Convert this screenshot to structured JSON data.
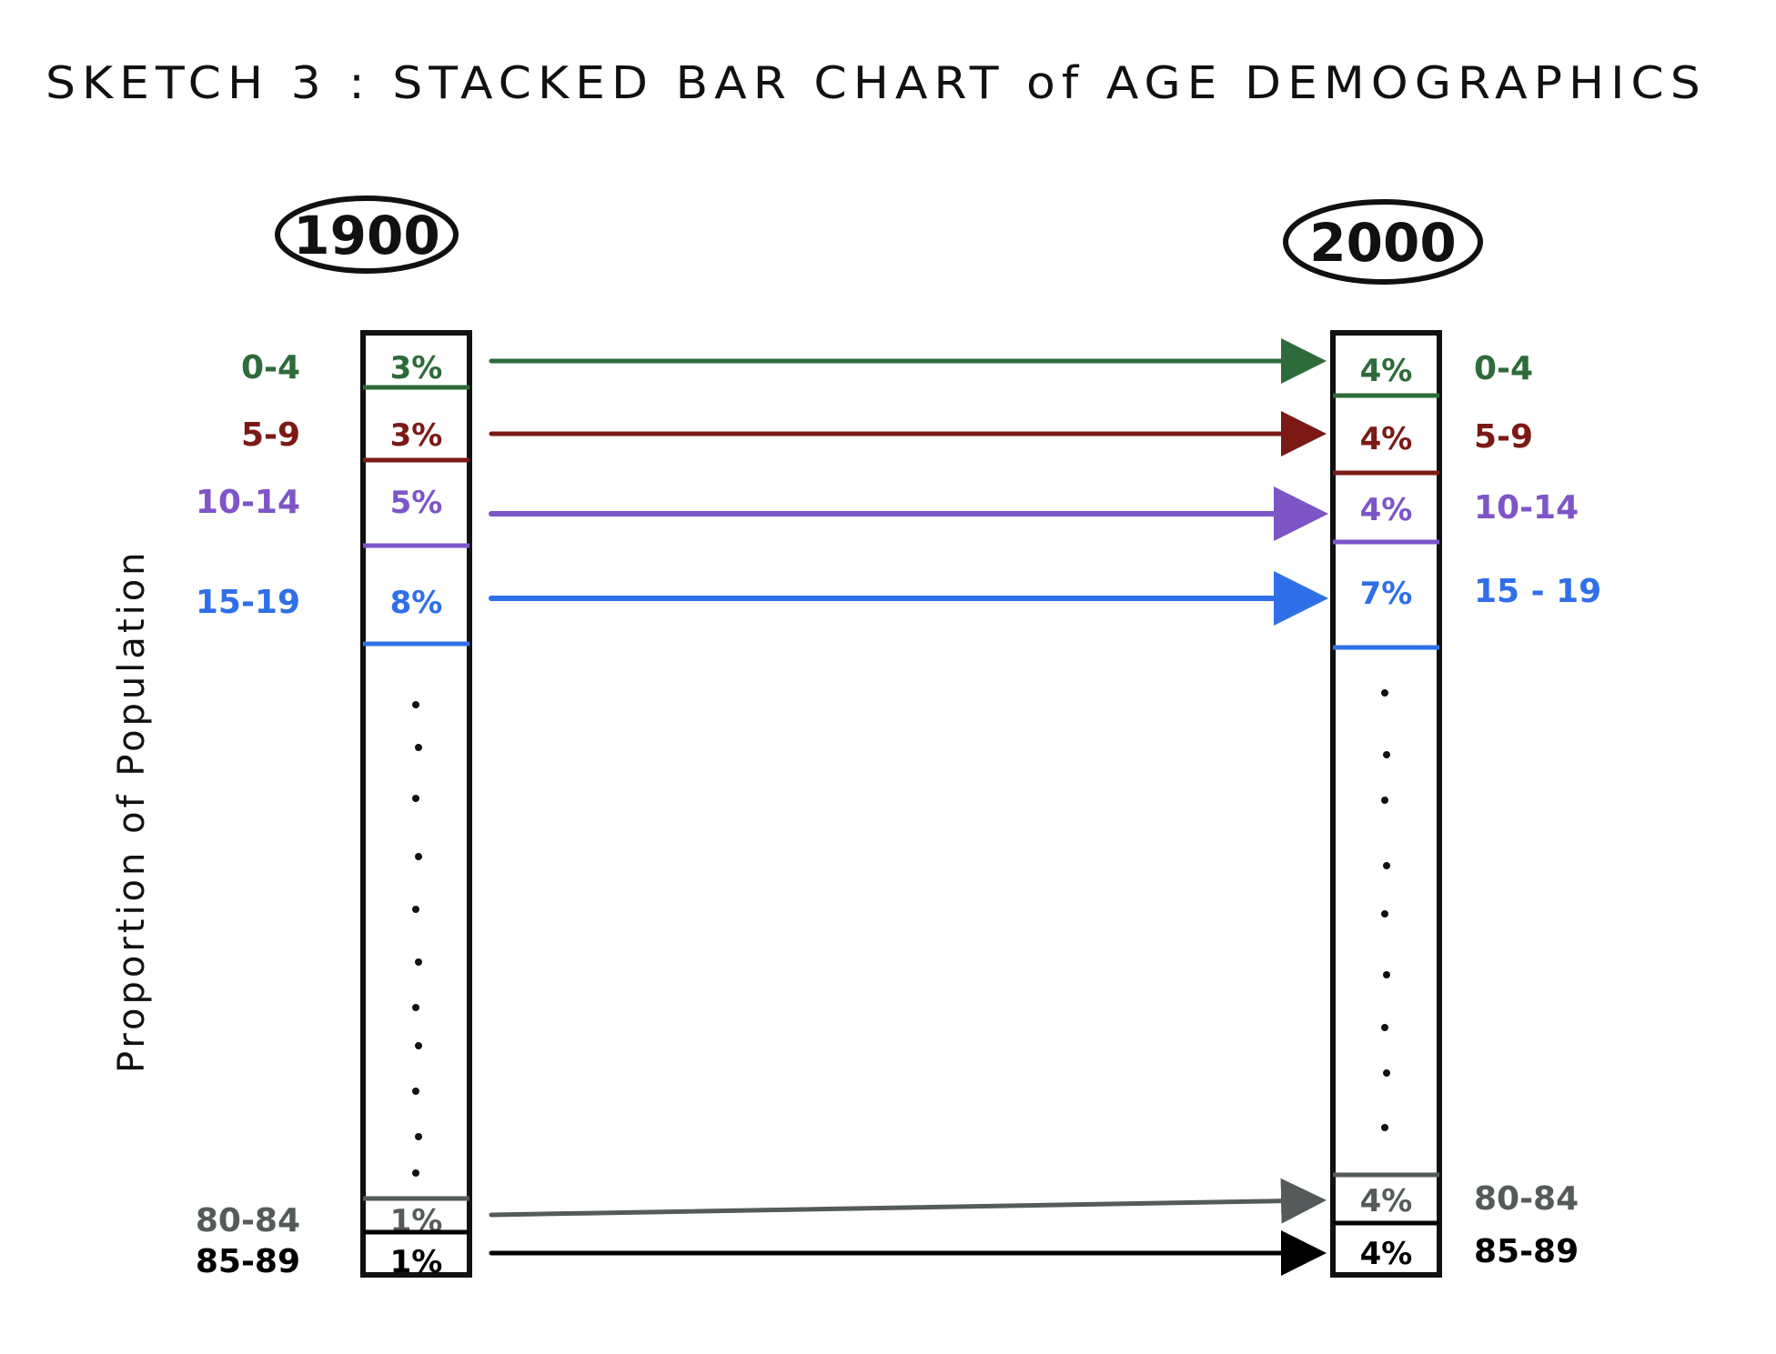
{
  "title": "SKETCH 3 : STACKED BAR CHART of AGE DEMOGRAPHICS",
  "y_axis_label": "Proportion of Population",
  "colors": {
    "0-4": "#2e6b3a",
    "5-9": "#7b1a15",
    "10-14": "#7d55c7",
    "15-19": "#2f6fe8",
    "80-84": "#555a5a",
    "85-89": "#000000"
  },
  "chart_data": {
    "type": "bar",
    "stacked": true,
    "categories": [
      "1900",
      "2000"
    ],
    "series": [
      {
        "name": "0-4",
        "values": [
          3,
          4
        ],
        "labels": [
          "3%",
          "4%"
        ]
      },
      {
        "name": "5-9",
        "values": [
          3,
          4
        ],
        "labels": [
          "3%",
          "4%"
        ]
      },
      {
        "name": "10-14",
        "values": [
          5,
          4
        ],
        "labels": [
          "5%",
          "4%"
        ]
      },
      {
        "name": "15-19",
        "values": [
          8,
          7
        ],
        "labels": [
          "8%",
          "7%"
        ]
      },
      {
        "name": "80-84",
        "values": [
          1,
          4
        ],
        "labels": [
          "1%",
          "4%"
        ]
      },
      {
        "name": "85-89",
        "values": [
          1,
          4
        ],
        "labels": [
          "1%",
          "4%"
        ]
      }
    ],
    "right_labels": [
      "0-4",
      "5-9",
      "10-14",
      "15 - 19",
      "80-84",
      "85-89"
    ],
    "title": "SKETCH 3 : STACKED BAR CHART of AGE DEMOGRAPHICS",
    "ylabel": "Proportion of Population",
    "omitted_note": "…"
  }
}
